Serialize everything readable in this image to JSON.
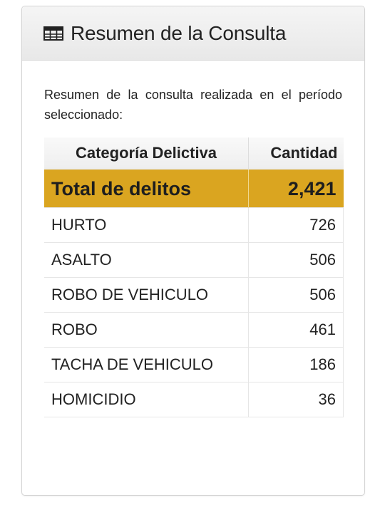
{
  "panel": {
    "title": "Resumen de la Consulta",
    "icon": "table-icon"
  },
  "intro": "Resumen de la consulta realizada en el período seleccionado:",
  "table": {
    "headers": {
      "category": "Categoría Delictiva",
      "quantity": "Cantidad"
    },
    "total": {
      "label": "Total de delitos",
      "value": "2,421"
    },
    "rows": [
      {
        "category": "HURTO",
        "value": "726"
      },
      {
        "category": "ASALTO",
        "value": "506"
      },
      {
        "category": "ROBO DE VEHICULO",
        "value": "506"
      },
      {
        "category": "ROBO",
        "value": "461"
      },
      {
        "category": "TACHA DE VEHICULO",
        "value": "186"
      },
      {
        "category": "HOMICIDIO",
        "value": "36"
      }
    ],
    "colors": {
      "total_row": "#daa520"
    }
  }
}
